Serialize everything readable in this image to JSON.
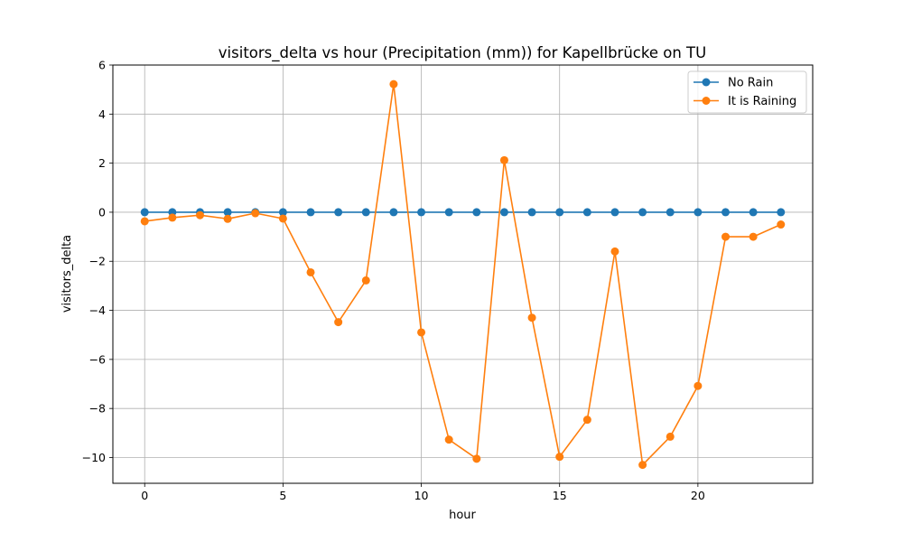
{
  "chart_data": {
    "type": "line",
    "title": "visitors_delta vs hour (Precipitation (mm)) for Kapellbrücke on TU",
    "xlabel": "hour",
    "ylabel": "visitors_delta",
    "xlim": [
      -1.15,
      24.15
    ],
    "ylim": [
      -11.05,
      6.0
    ],
    "xticks": [
      0,
      5,
      10,
      15,
      20
    ],
    "yticks": [
      -10,
      -8,
      -6,
      -4,
      -2,
      0,
      2,
      4,
      6
    ],
    "grid": true,
    "legend_position": "top-right",
    "x": [
      0,
      1,
      2,
      3,
      4,
      5,
      6,
      7,
      8,
      9,
      10,
      11,
      12,
      13,
      14,
      15,
      16,
      17,
      18,
      19,
      20,
      21,
      22,
      23
    ],
    "series": [
      {
        "name": "No Rain",
        "color": "#1f77b4",
        "values": [
          0,
          0,
          0,
          0,
          0,
          0,
          0,
          0,
          0,
          0,
          0,
          0,
          0,
          0,
          0,
          0,
          0,
          0,
          0,
          0,
          0,
          0,
          0,
          0
        ]
      },
      {
        "name": "It is Raining",
        "color": "#ff7f0e",
        "values": [
          -0.37,
          -0.22,
          -0.12,
          -0.27,
          -0.04,
          -0.26,
          -2.45,
          -4.48,
          -2.78,
          5.22,
          -4.9,
          -9.27,
          -10.05,
          2.12,
          -4.3,
          -9.97,
          -8.46,
          -1.6,
          -10.3,
          -9.15,
          -7.08,
          -1.0,
          -1.0,
          -0.5
        ]
      }
    ]
  }
}
